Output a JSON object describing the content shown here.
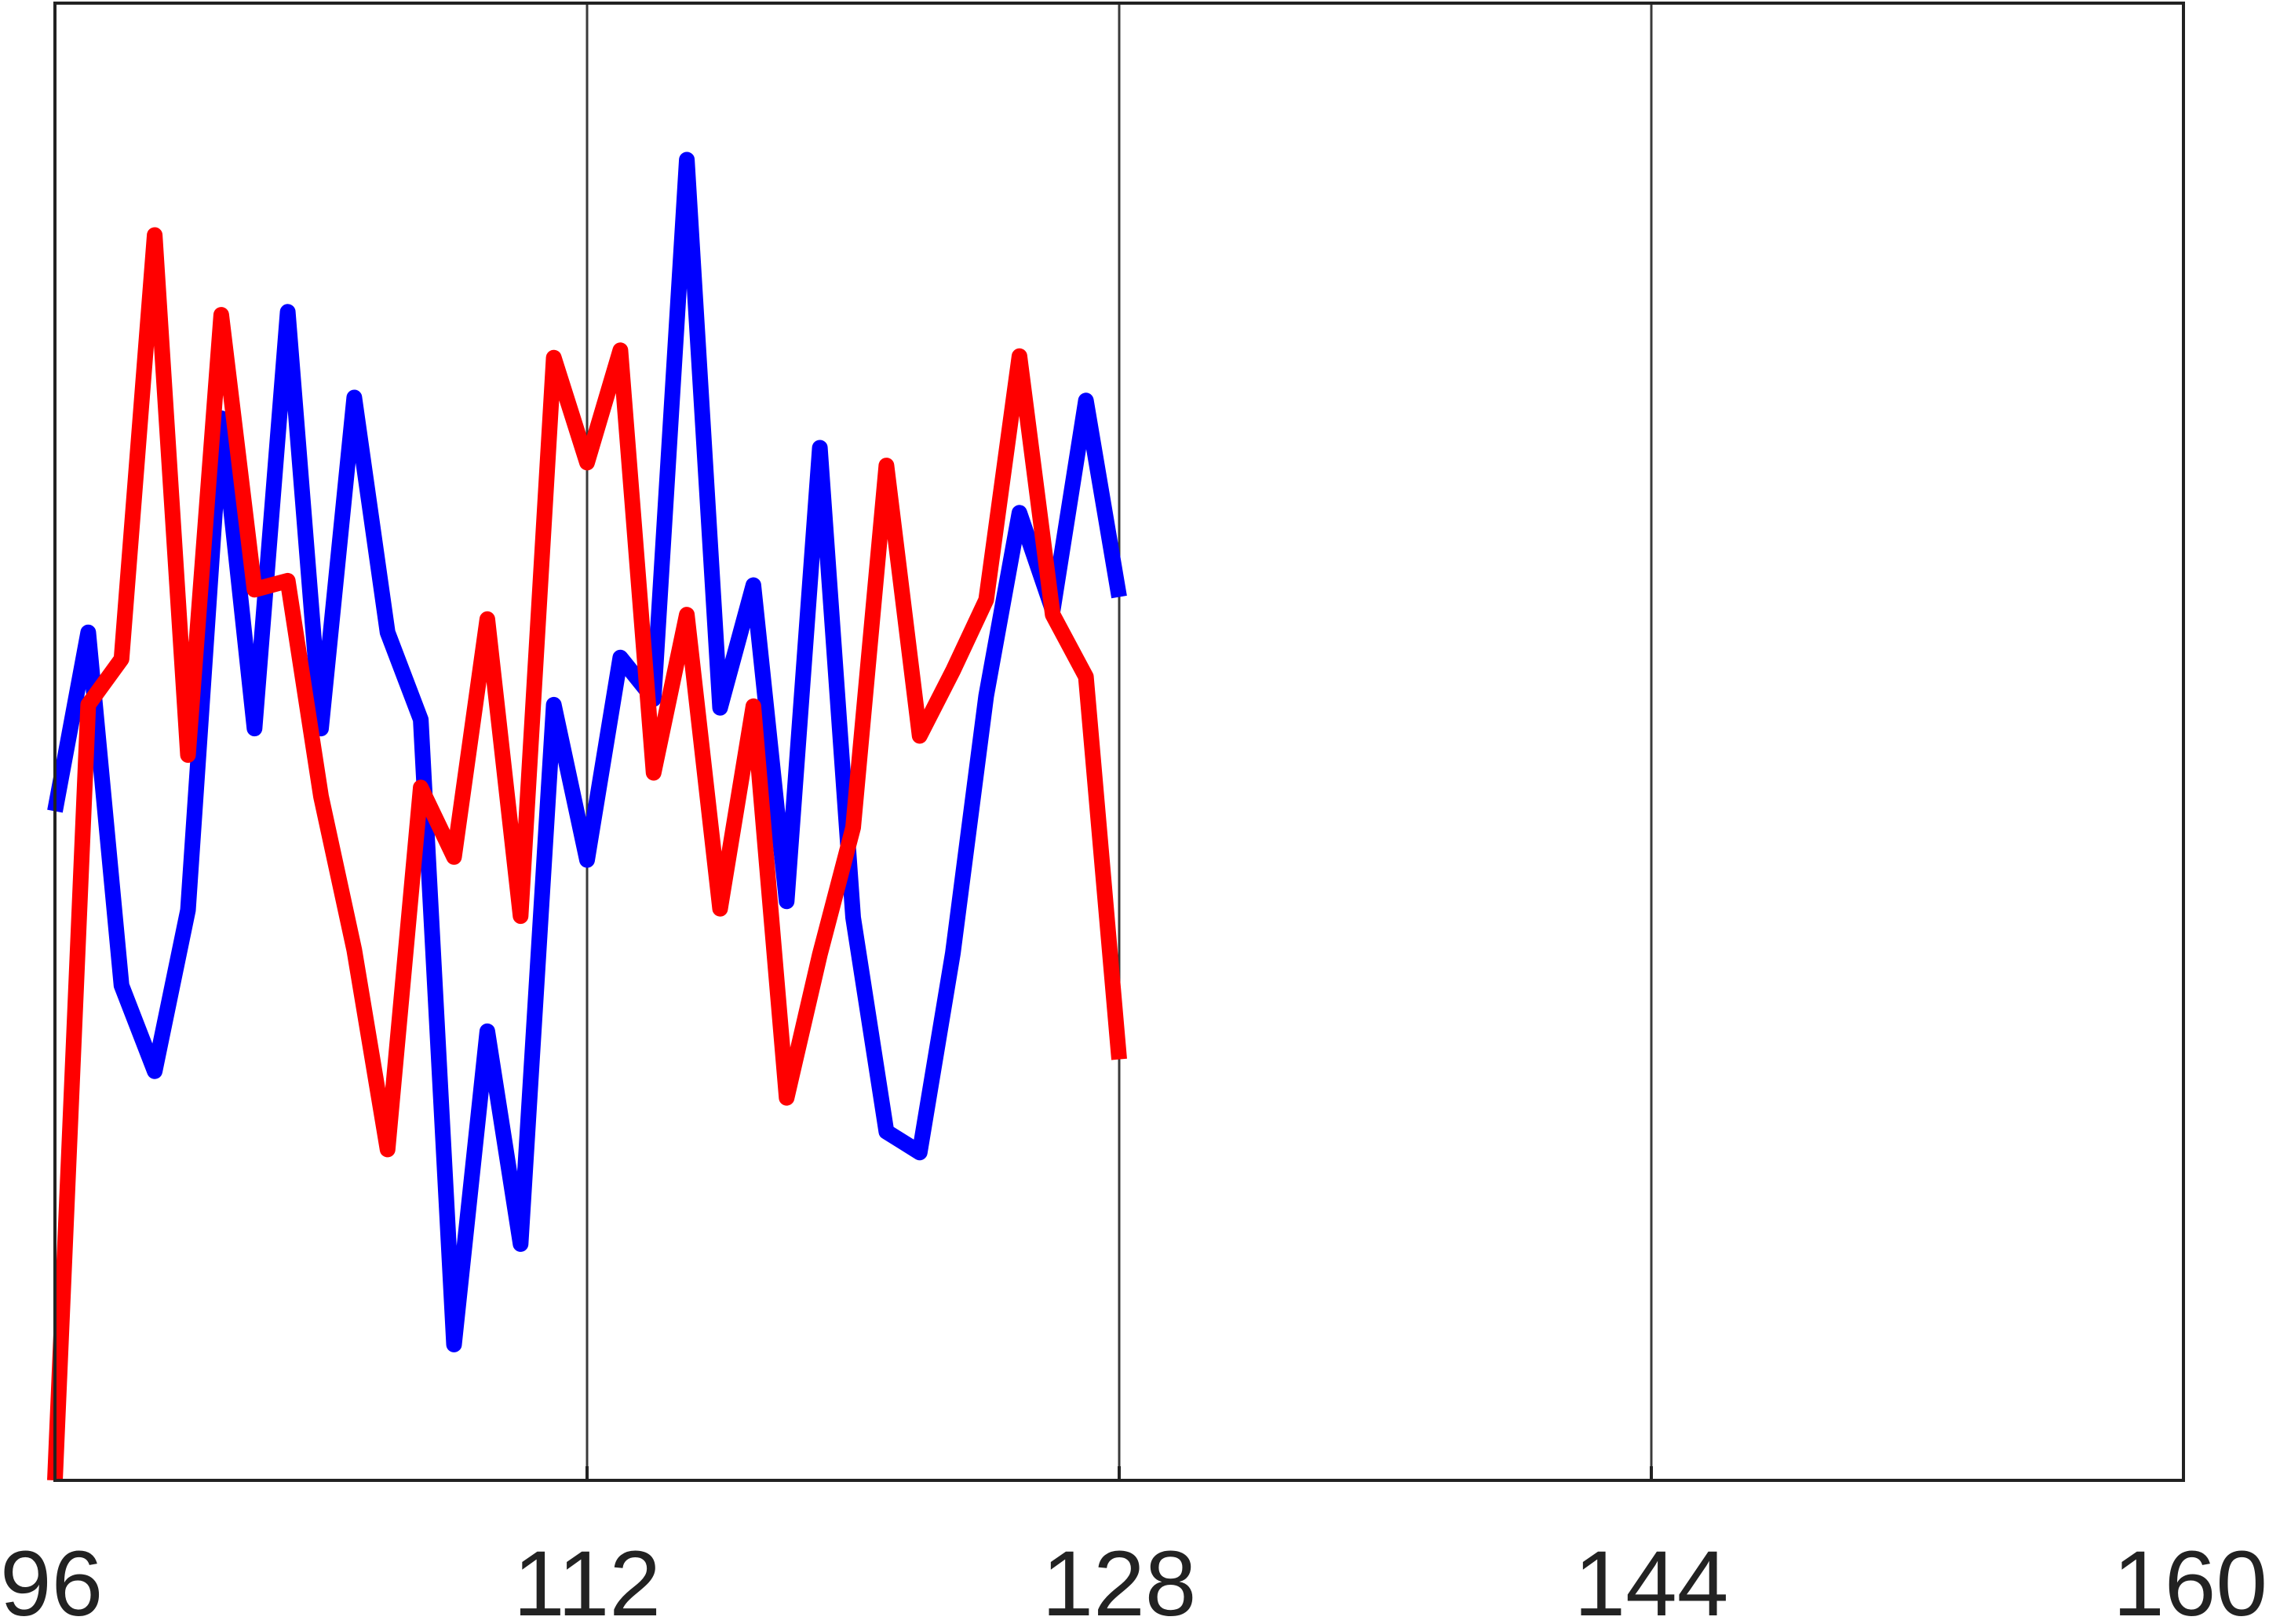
{
  "chart_data": {
    "type": "line",
    "title": "",
    "xlabel": "",
    "ylabel": "",
    "xlim": [
      96,
      160
    ],
    "ylim": [
      0,
      1
    ],
    "grid": {
      "x": true,
      "y": false
    },
    "legend": "none",
    "x_ticks": [
      96,
      112,
      128,
      144,
      160
    ],
    "x_tick_labels": [
      "96",
      "112",
      "128",
      "144",
      "160"
    ],
    "series": [
      {
        "color": "#0000ff",
        "x": [
          96,
          97,
          98,
          99,
          100,
          101,
          102,
          103,
          104,
          105,
          106,
          107,
          108,
          109,
          110,
          111,
          112,
          113,
          114,
          115,
          116,
          117,
          118,
          119,
          120,
          121,
          122,
          123,
          124,
          125,
          126,
          127,
          128
        ],
        "y": [
          0.453,
          0.574,
          0.335,
          0.277,
          0.386,
          0.719,
          0.509,
          0.791,
          0.509,
          0.733,
          0.574,
          0.515,
          0.092,
          0.304,
          0.16,
          0.525,
          0.42,
          0.557,
          0.529,
          0.894,
          0.523,
          0.606,
          0.392,
          0.699,
          0.381,
          0.236,
          0.222,
          0.357,
          0.531,
          0.655,
          0.589,
          0.731,
          0.598
        ]
      },
      {
        "color": "#ff0000",
        "x": [
          96,
          97,
          98,
          99,
          100,
          101,
          102,
          103,
          104,
          105,
          106,
          107,
          108,
          109,
          110,
          111,
          112,
          113,
          114,
          115,
          116,
          117,
          118,
          119,
          120,
          121,
          122,
          123,
          124,
          125,
          126,
          127,
          128
        ],
        "y": [
          0.0,
          0.525,
          0.556,
          0.843,
          0.491,
          0.789,
          0.603,
          0.609,
          0.463,
          0.359,
          0.224,
          0.469,
          0.422,
          0.583,
          0.382,
          0.76,
          0.689,
          0.765,
          0.479,
          0.586,
          0.387,
          0.524,
          0.259,
          0.356,
          0.442,
          0.687,
          0.504,
          0.548,
          0.596,
          0.761,
          0.586,
          0.544,
          0.285
        ]
      }
    ]
  }
}
